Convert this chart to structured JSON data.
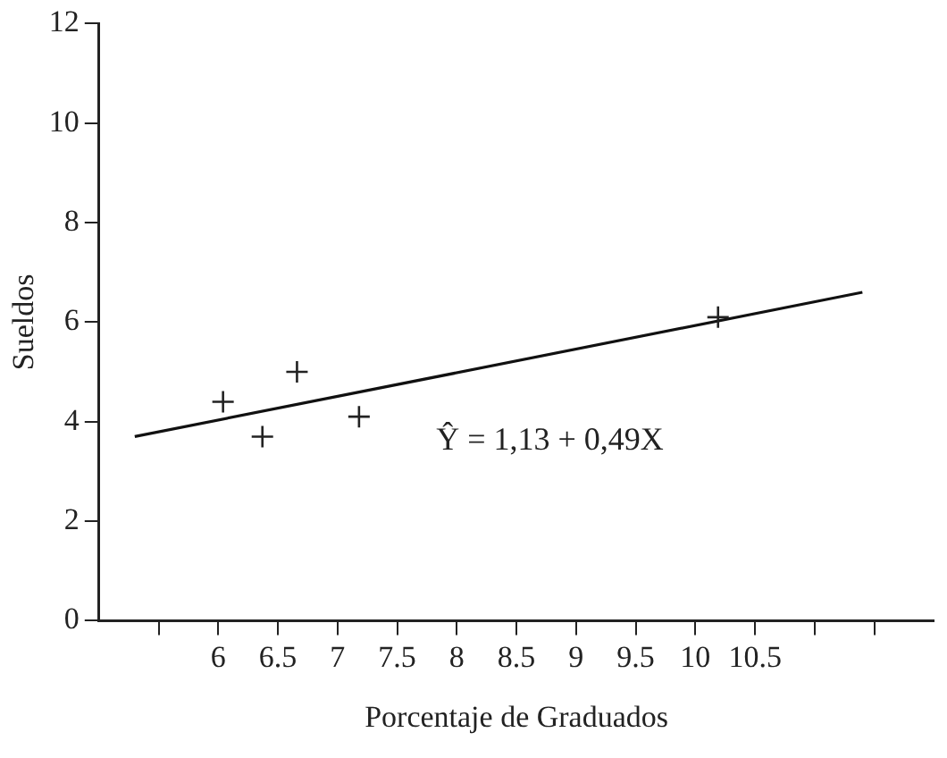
{
  "chart_data": {
    "type": "scatter",
    "xlabel": "Porcentaje de Graduados",
    "ylabel": "Sueldos",
    "xlim": [
      5,
      12
    ],
    "ylim": [
      0,
      12
    ],
    "xticks": [
      {
        "value": 5.5,
        "label": null
      },
      6,
      6.5,
      7,
      7.5,
      8,
      8.5,
      9,
      9.5,
      10,
      {
        "value": 10.5,
        "label": "10.5"
      },
      {
        "value": 11,
        "label": null
      },
      {
        "value": 11.5,
        "label": null
      }
    ],
    "yticks": [
      0,
      2,
      4,
      6,
      8,
      10,
      12
    ],
    "series": [
      {
        "color": "#222222",
        "marker": "cross",
        "x": [
          6.04,
          6.37,
          6.66,
          7.18,
          10.19
        ],
        "values": [
          4.4,
          3.7,
          5.0,
          4.1,
          6.1
        ]
      },
      {
        "type": "line",
        "color": "#111111",
        "marker": "none",
        "line_style": "solid",
        "x": [
          5.3,
          11.4
        ],
        "values": [
          3.7,
          6.6
        ]
      }
    ],
    "annotations": [
      "Ŷ = 1,13 + 0,49X"
    ],
    "grid": false,
    "legend": false
  }
}
